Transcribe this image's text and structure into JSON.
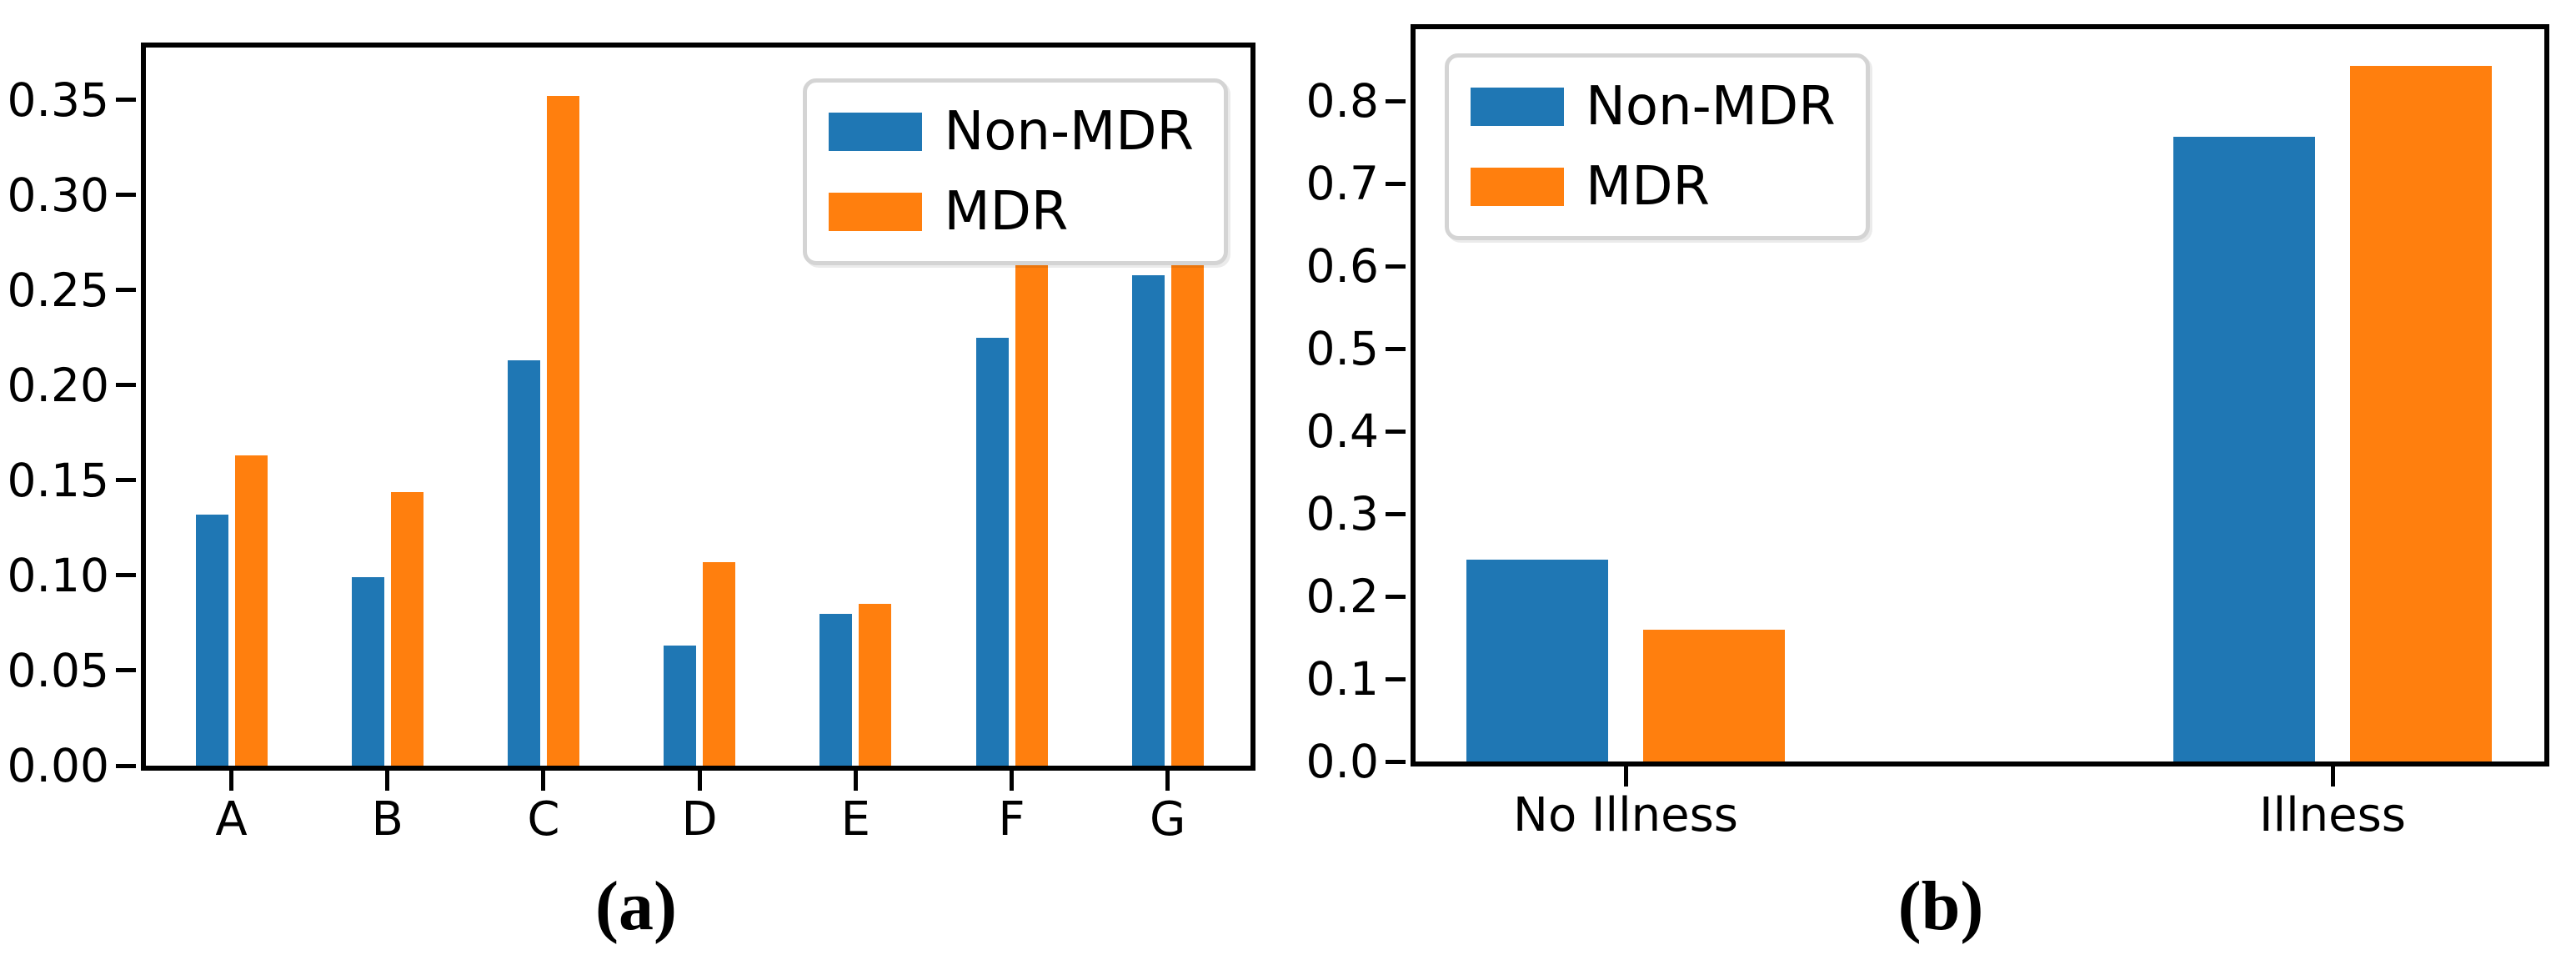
{
  "colors": {
    "non_mdr": "#1f77b4",
    "mdr": "#ff7f0e",
    "axis": "#000000",
    "legend_border": "#d4d4d4",
    "background": "#ffffff"
  },
  "legend": {
    "items": [
      {
        "label": "Non-MDR",
        "color_key": "non_mdr"
      },
      {
        "label": "MDR",
        "color_key": "mdr"
      }
    ]
  },
  "captions": {
    "a": "(a)",
    "b": "(b)"
  },
  "chart_data": [
    {
      "id": "a",
      "type": "bar",
      "caption": "(a)",
      "categories": [
        "A",
        "B",
        "C",
        "D",
        "E",
        "F",
        "G"
      ],
      "series": [
        {
          "name": "Non-MDR",
          "values": [
            0.132,
            0.099,
            0.213,
            0.063,
            0.08,
            0.225,
            0.258
          ]
        },
        {
          "name": "MDR",
          "values": [
            0.163,
            0.144,
            0.352,
            0.107,
            0.085,
            0.285,
            0.285
          ]
        }
      ],
      "ylim": [
        0,
        0.3776
      ],
      "yticks": [
        {
          "value": 0.0,
          "label": "0.00"
        },
        {
          "value": 0.05,
          "label": "0.05"
        },
        {
          "value": 0.1,
          "label": "0.10"
        },
        {
          "value": 0.15,
          "label": "0.15"
        },
        {
          "value": 0.2,
          "label": "0.20"
        },
        {
          "value": 0.25,
          "label": "0.25"
        },
        {
          "value": 0.3,
          "label": "0.30"
        },
        {
          "value": 0.35,
          "label": "0.35"
        }
      ],
      "legend_position": "top-right",
      "grid": false,
      "xlabel": "",
      "ylabel": ""
    },
    {
      "id": "b",
      "type": "bar",
      "caption": "(b)",
      "categories": [
        "No Illness",
        "Illness"
      ],
      "series": [
        {
          "name": "Non-MDR",
          "values": [
            0.244,
            0.757
          ]
        },
        {
          "name": "MDR",
          "values": [
            0.16,
            0.843
          ]
        }
      ],
      "ylim": [
        0,
        0.887
      ],
      "yticks": [
        {
          "value": 0.0,
          "label": "0.0"
        },
        {
          "value": 0.1,
          "label": "0.1"
        },
        {
          "value": 0.2,
          "label": "0.2"
        },
        {
          "value": 0.3,
          "label": "0.3"
        },
        {
          "value": 0.4,
          "label": "0.4"
        },
        {
          "value": 0.5,
          "label": "0.5"
        },
        {
          "value": 0.6,
          "label": "0.6"
        },
        {
          "value": 0.7,
          "label": "0.7"
        },
        {
          "value": 0.8,
          "label": "0.8"
        }
      ],
      "legend_position": "top-left",
      "grid": false,
      "xlabel": "",
      "ylabel": ""
    }
  ]
}
